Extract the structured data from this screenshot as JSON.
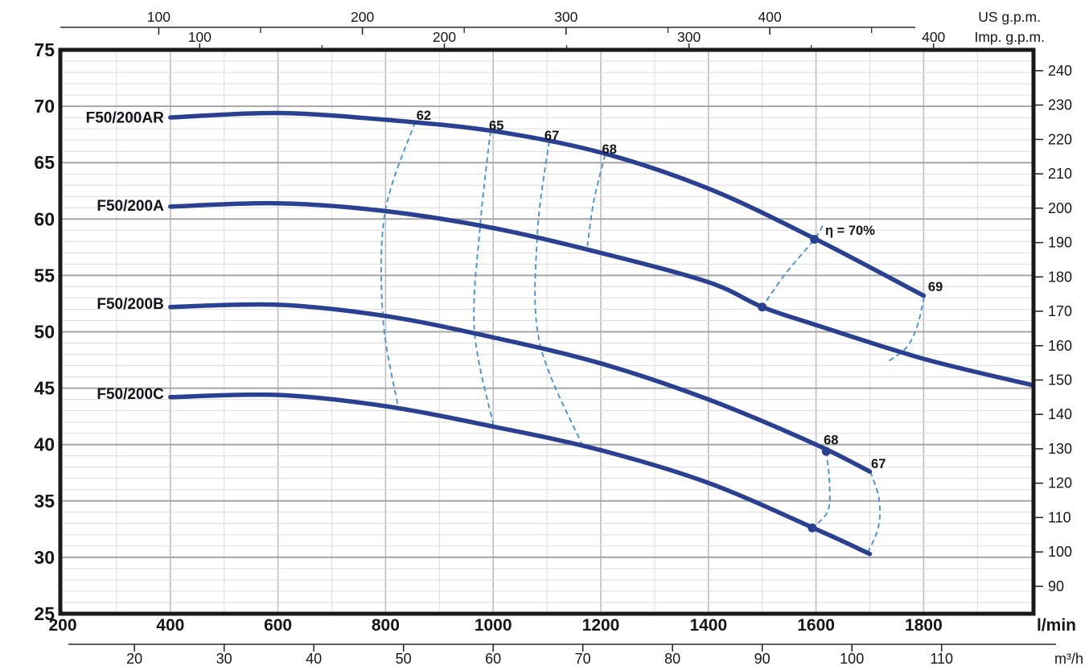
{
  "chart_data": {
    "type": "line",
    "description_labels": {
      "top_axis_1": "US g.p.m.",
      "top_axis_2": "Imp. g.p.m.",
      "bottom_axis_1": "l/min",
      "bottom_axis_2": "m³/h"
    },
    "axes": {
      "flow_lmin": {
        "label": "l/min",
        "ticks": [
          200,
          400,
          600,
          800,
          1000,
          1200,
          1400,
          1600,
          1800
        ],
        "range": [
          200,
          2000
        ]
      },
      "flow_m3h": {
        "label": "m³/h",
        "ticks": [
          20,
          30,
          40,
          50,
          60,
          70,
          80,
          90,
          100,
          110
        ],
        "lmin_per_unit": 16.6667
      },
      "flow_usgpm": {
        "label": "US g.p.m.",
        "ticks": [
          100,
          200,
          300,
          400
        ],
        "minor_ticks": [
          150,
          250,
          350,
          450
        ],
        "lmin_per_unit": 3.785
      },
      "flow_impgpm": {
        "label": "Imp. g.p.m.",
        "ticks": [
          100,
          200,
          300,
          400
        ],
        "minor_ticks": [
          150,
          250,
          350
        ],
        "lmin_per_unit": 4.546
      },
      "head_m": {
        "ticks": [
          75,
          70,
          65,
          60,
          55,
          50,
          45,
          40,
          35,
          30,
          25
        ],
        "range": [
          25,
          75
        ]
      },
      "head_ft": {
        "ticks": [
          240,
          230,
          220,
          210,
          200,
          190,
          180,
          170,
          160,
          150,
          140,
          130,
          120,
          110,
          100,
          90
        ],
        "ft_per_m": 3.2808
      }
    },
    "series": [
      {
        "name": "F50/200AR",
        "label_at": [
          388,
          69.0
        ],
        "points": [
          [
            400,
            69.0
          ],
          [
            600,
            69.4
          ],
          [
            800,
            68.8
          ],
          [
            1000,
            67.8
          ],
          [
            1200,
            65.9
          ],
          [
            1400,
            62.7
          ],
          [
            1600,
            58.2
          ],
          [
            1800,
            53.2
          ]
        ]
      },
      {
        "name": "F50/200A",
        "label_at": [
          388,
          61.2
        ],
        "points": [
          [
            400,
            61.1
          ],
          [
            600,
            61.4
          ],
          [
            800,
            60.7
          ],
          [
            1000,
            59.2
          ],
          [
            1200,
            57.0
          ],
          [
            1400,
            54.4
          ],
          [
            1500,
            52.2
          ],
          [
            1600,
            50.6
          ],
          [
            1800,
            47.6
          ],
          [
            2000,
            45.3
          ]
        ]
      },
      {
        "name": "F50/200B",
        "label_at": [
          388,
          52.5
        ],
        "points": [
          [
            400,
            52.2
          ],
          [
            600,
            52.4
          ],
          [
            800,
            51.4
          ],
          [
            1000,
            49.5
          ],
          [
            1200,
            47.2
          ],
          [
            1400,
            44.0
          ],
          [
            1600,
            40.0
          ],
          [
            1700,
            37.6
          ]
        ]
      },
      {
        "name": "F50/200C",
        "label_at": [
          388,
          44.5
        ],
        "points": [
          [
            400,
            44.2
          ],
          [
            600,
            44.4
          ],
          [
            800,
            43.4
          ],
          [
            1000,
            41.6
          ],
          [
            1200,
            39.5
          ],
          [
            1400,
            36.6
          ],
          [
            1600,
            32.5
          ],
          [
            1700,
            30.3
          ]
        ]
      }
    ],
    "efficiency_lines": [
      {
        "label": "62",
        "anchor": "middle",
        "label_at": [
          871,
          69.2
        ],
        "points": [
          [
            855,
            68.6
          ],
          [
            799,
            60.6
          ],
          [
            795,
            51.3
          ],
          [
            823,
            43.4
          ]
        ]
      },
      {
        "label": "65",
        "anchor": "middle",
        "label_at": [
          1006,
          68.3
        ],
        "points": [
          [
            995,
            67.8
          ],
          [
            976,
            59.5
          ],
          [
            965,
            50.2
          ],
          [
            1000,
            41.8
          ]
        ]
      },
      {
        "label": "67",
        "anchor": "middle",
        "label_at": [
          1109,
          67.4
        ],
        "points": [
          [
            1104,
            66.9
          ],
          [
            1082,
            58.6
          ],
          [
            1086,
            49.1
          ],
          [
            1166,
            39.9
          ]
        ]
      },
      {
        "label": "68",
        "anchor": "middle",
        "label_at": [
          1216,
          66.2
        ],
        "points": [
          [
            1208,
            65.7
          ],
          [
            1187,
            61.6
          ],
          [
            1175,
            57.6
          ]
        ]
      },
      {
        "label": "η = 70%",
        "anchor": "start",
        "label_at": [
          1617,
          59.0
        ],
        "points": [
          [
            1612,
            59.4
          ],
          [
            1597,
            58.2
          ],
          [
            1544,
            55.2
          ],
          [
            1500,
            52.2
          ]
        ]
      },
      {
        "label": "69",
        "anchor": "middle",
        "label_at": [
          1822,
          54.0
        ],
        "points": [
          [
            1801,
            53.1
          ],
          [
            1788,
            50.5
          ],
          [
            1768,
            48.6
          ],
          [
            1732,
            47.3
          ]
        ]
      },
      {
        "label": "68",
        "anchor": "middle",
        "label_at": [
          1628,
          40.4
        ],
        "points": [
          [
            1619,
            39.4
          ],
          [
            1625,
            36.6
          ],
          [
            1622,
            34.1
          ],
          [
            1593,
            32.6
          ]
        ]
      },
      {
        "label": "67",
        "anchor": "middle",
        "label_at": [
          1716,
          38.3
        ],
        "points": [
          [
            1701,
            37.6
          ],
          [
            1717,
            35.2
          ],
          [
            1716,
            32.7
          ],
          [
            1696,
            30.4
          ]
        ]
      }
    ],
    "markers": [
      [
        1597,
        58.2
      ],
      [
        1500,
        52.2
      ],
      [
        1619,
        39.4
      ],
      [
        1593,
        32.6
      ]
    ],
    "colors": {
      "curve": "#2a4191",
      "efficiency_line": "#4a94cf",
      "curve_label_text": "#14141c",
      "text": "#161616",
      "grid_minor": "#dcdcdc",
      "grid_major_h": "#a6a6a6",
      "grid_major_v": "#bdbdbd",
      "frame": "#1a1a1a",
      "axis_line": "#2a2a2a"
    }
  }
}
